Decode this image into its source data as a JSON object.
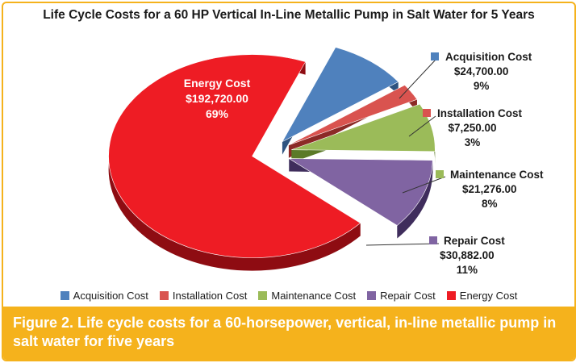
{
  "chart_data": {
    "type": "pie",
    "title": "Life Cycle Costs for a 60 HP Vertical In-Line Metallic Pump in Salt Water for 5 Years",
    "slices": [
      {
        "name": "Acquisition Cost",
        "value": 24700.0,
        "value_label": "$24,700.00",
        "percent_label": "9%",
        "color": "#4f81bd",
        "dark": "#2e5380"
      },
      {
        "name": "Installation Cost",
        "value": 7250.0,
        "value_label": "$7,250.00",
        "percent_label": "3%",
        "color": "#d9534f",
        "dark": "#8c2a27"
      },
      {
        "name": "Maintenance Cost",
        "value": 21276.0,
        "value_label": "$21,276.00",
        "percent_label": "8%",
        "color": "#9bbb59",
        "dark": "#5b7a28"
      },
      {
        "name": "Repair Cost",
        "value": 30882.0,
        "value_label": "$30,882.00",
        "percent_label": "11%",
        "color": "#8064a2",
        "dark": "#3f2d5c"
      },
      {
        "name": "Energy Cost",
        "value": 192720.0,
        "value_label": "$192,720.00",
        "percent_label": "69%",
        "color": "#ee1c24",
        "dark": "#8e0c12"
      }
    ],
    "legend_position": "bottom"
  },
  "caption": "Figure 2. Life cycle costs for a 60-horsepower, vertical, in-line metallic pump in salt water for five years",
  "colors": {
    "caption_bg": "#f5b21c",
    "caption_text": "#ffffff"
  }
}
